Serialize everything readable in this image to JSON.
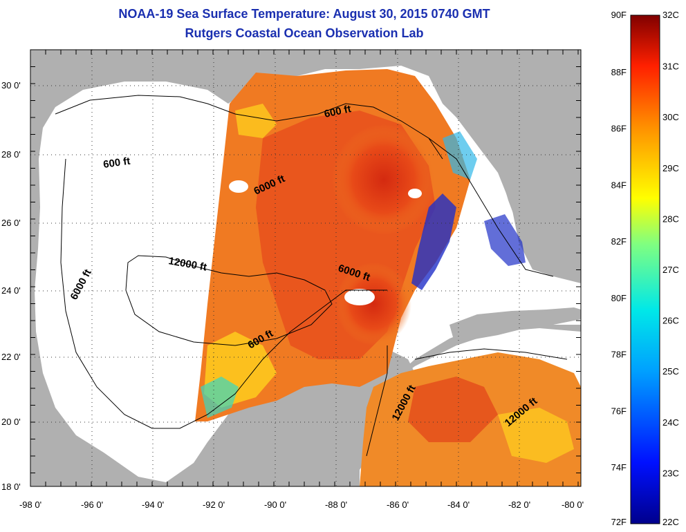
{
  "title_line1": "NOAA-19 Sea Surface Temperature:  August 30, 2015 0740 GMT",
  "title_line2": "Rutgers Coastal Ocean Observation Lab",
  "lat_ticks": [
    "30 0'",
    "28 0'",
    "26 0'",
    "24 0'",
    "22 0'",
    "20 0'",
    "18 0'"
  ],
  "lon_ticks": [
    "-98 0'",
    "-96 0'",
    "-94 0'",
    "-92 0'",
    "-90 0'",
    "-88 0'",
    "-86 0'",
    "-84 0'",
    "-82 0'",
    "-80 0'"
  ],
  "contour_labels": {
    "c600_east": "600 ft",
    "c600_west": "600 ft",
    "c6000_north": "6000 ft",
    "c12000_center": "12000 ft",
    "c6000_west": "6000 ft",
    "c6000_center": "6000 ft",
    "c600_south": "600 ft",
    "c12000_yucatan": "12000 ft",
    "c12000_caribbean": "12000 ft"
  },
  "colorbar": {
    "fahrenheit": [
      "90F",
      "88F",
      "86F",
      "84F",
      "82F",
      "80F",
      "78F",
      "76F",
      "74F",
      "72F"
    ],
    "celsius": [
      "32C",
      "31C",
      "30C",
      "29C",
      "28C",
      "27C",
      "26C",
      "25C",
      "24C",
      "23C",
      "22C"
    ]
  },
  "colors": {
    "title": "#1a2fb0",
    "land": "#b0b0b0",
    "no_data": "#ffffff",
    "warm": "#e8401a",
    "hot": "#c81e1e"
  }
}
